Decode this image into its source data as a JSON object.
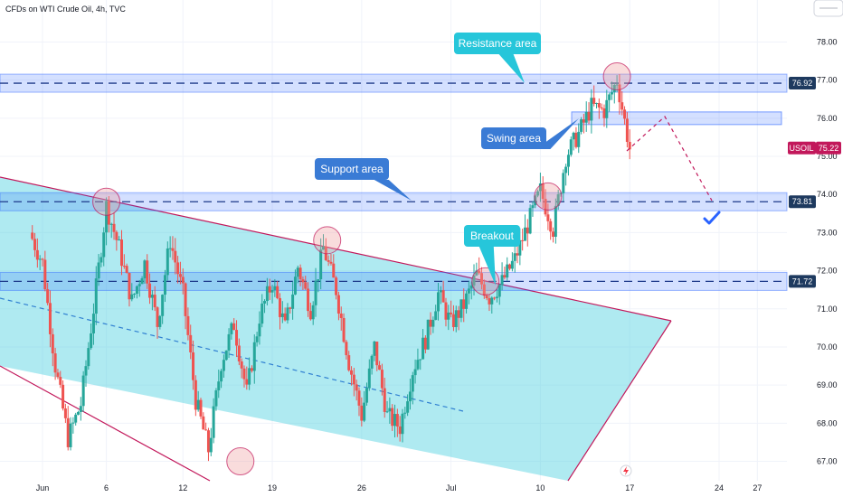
{
  "chart_data": {
    "type": "candlestick",
    "title": "CFDs on WTI Crude Oil, 4h, TVC",
    "symbol": "USOIL",
    "last_price": 75.22,
    "colors": {
      "up": "#26a69a",
      "down": "#ef5350",
      "zone": "#2962ff",
      "channel": "#4dd0e1",
      "channel_line": "#c2185b",
      "resistance_callout": "#26c6da",
      "callout": "#2962ff",
      "price_badge": "#c2185b",
      "level_badge": "#1e3a5f"
    },
    "y_axis": {
      "min": 66.8,
      "max": 78.4,
      "ticks": [
        "78.00",
        "77.00",
        "76.00",
        "75.00",
        "74.00",
        "73.00",
        "72.00",
        "71.00",
        "70.00",
        "69.00",
        "68.00",
        "67.00"
      ]
    },
    "x_axis": {
      "ticks": [
        "Jun",
        "6",
        "12",
        "19",
        "26",
        "Jul",
        "10",
        "17",
        "24",
        "27"
      ],
      "tick_days": [
        1,
        6,
        12,
        19,
        26,
        33,
        40,
        47,
        54,
        57
      ],
      "day_min": 0,
      "day_max": 61
    },
    "levels": [
      {
        "label": "76.92",
        "value": 76.92
      },
      {
        "label": "73.81",
        "value": 73.81
      },
      {
        "label": "71.72",
        "value": 71.72
      }
    ],
    "annotations": [
      "Resistance area",
      "Swing area",
      "Support area",
      "Breakout"
    ],
    "price_path": [
      [
        0,
        73.0
      ],
      [
        1,
        72.2
      ],
      [
        2,
        69.5
      ],
      [
        3,
        67.6
      ],
      [
        4,
        68.5
      ],
      [
        5,
        71.0
      ],
      [
        6,
        73.7
      ],
      [
        7,
        72.6
      ],
      [
        8,
        71.2
      ],
      [
        9,
        72.2
      ],
      [
        10,
        70.6
      ],
      [
        11,
        72.8
      ],
      [
        12,
        71.4
      ],
      [
        13,
        68.6
      ],
      [
        14,
        67.3
      ],
      [
        15,
        69.6
      ],
      [
        16,
        70.6
      ],
      [
        17,
        68.8
      ],
      [
        18,
        70.8
      ],
      [
        19,
        71.7
      ],
      [
        20,
        70.5
      ],
      [
        21,
        72.1
      ],
      [
        22,
        71.0
      ],
      [
        23,
        72.6
      ],
      [
        24,
        71.5
      ],
      [
        25,
        69.6
      ],
      [
        26,
        68.2
      ],
      [
        27,
        70.0
      ],
      [
        28,
        68.2
      ],
      [
        29,
        67.9
      ],
      [
        30,
        69.4
      ],
      [
        31,
        70.2
      ],
      [
        32,
        71.4
      ],
      [
        33,
        70.6
      ],
      [
        34,
        71.1
      ],
      [
        35,
        71.9
      ],
      [
        36,
        71.3
      ],
      [
        37,
        71.7
      ],
      [
        38,
        72.3
      ],
      [
        39,
        73.2
      ],
      [
        40,
        74.1
      ],
      [
        41,
        73.1
      ],
      [
        42,
        75.0
      ],
      [
        43,
        75.6
      ],
      [
        44,
        76.3
      ],
      [
        45,
        76.2
      ],
      [
        46,
        77.0
      ],
      [
        47,
        75.2
      ]
    ]
  }
}
